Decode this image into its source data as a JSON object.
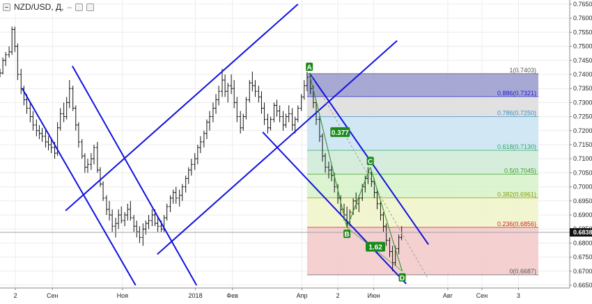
{
  "toolbar": {
    "symbol": "NZD/USD, Д,",
    "dash": "–"
  },
  "current_price": "0.6838",
  "chart_data": {
    "type": "candlestick",
    "symbol": "NZD/USD",
    "timeframe": "Д",
    "ylim": [
      0.665,
      0.765
    ],
    "ytick_values": [
      0.665,
      0.67,
      0.675,
      0.68,
      0.685,
      0.69,
      0.695,
      0.7,
      0.705,
      0.71,
      0.715,
      0.72,
      0.725,
      0.73,
      0.735,
      0.74,
      0.745,
      0.75,
      0.755,
      0.76,
      0.765
    ],
    "ytick_labels": [
      "0.6650",
      "0.6700",
      "0.6750",
      "0.6800",
      "0.6850",
      "0.6900",
      "0.6950",
      "0.7000",
      "0.7050",
      "0.7100",
      "0.7150",
      "0.7200",
      "0.7250",
      "0.7300",
      "0.7350",
      "0.7400",
      "0.7450",
      "0.7500",
      "0.7550",
      "0.7600",
      "0.7650"
    ],
    "xlim": [
      0,
      100
    ],
    "xticks": [
      {
        "x": 2.7,
        "label": "2"
      },
      {
        "x": 9.2,
        "label": "Сен"
      },
      {
        "x": 21.5,
        "label": "Ноя"
      },
      {
        "x": 34.3,
        "label": "2018"
      },
      {
        "x": 40.8,
        "label": "Фев"
      },
      {
        "x": 53.0,
        "label": "Апр"
      },
      {
        "x": 59.3,
        "label": "2"
      },
      {
        "x": 65.6,
        "label": "Июн"
      },
      {
        "x": 78.6,
        "label": "Авг"
      },
      {
        "x": 84.6,
        "label": "Сен"
      },
      {
        "x": 91.0,
        "label": "3"
      }
    ],
    "ohlc": [
      [
        0.0,
        0.74,
        0.742,
        0.739,
        0.7405
      ],
      [
        0.5,
        0.7405,
        0.746,
        0.74,
        0.745
      ],
      [
        1.0,
        0.745,
        0.748,
        0.743,
        0.747
      ],
      [
        1.6,
        0.747,
        0.75,
        0.746,
        0.748
      ],
      [
        2.1,
        0.748,
        0.757,
        0.747,
        0.756
      ],
      [
        2.6,
        0.756,
        0.757,
        0.748,
        0.75
      ],
      [
        3.1,
        0.75,
        0.751,
        0.738,
        0.74
      ],
      [
        3.7,
        0.74,
        0.742,
        0.733,
        0.735
      ],
      [
        4.2,
        0.735,
        0.736,
        0.729,
        0.731
      ],
      [
        4.7,
        0.731,
        0.733,
        0.726,
        0.728
      ],
      [
        5.3,
        0.728,
        0.73,
        0.723,
        0.725
      ],
      [
        5.8,
        0.725,
        0.727,
        0.72,
        0.722
      ],
      [
        6.4,
        0.722,
        0.724,
        0.718,
        0.72
      ],
      [
        6.9,
        0.72,
        0.722,
        0.717,
        0.719
      ],
      [
        7.4,
        0.719,
        0.721,
        0.716,
        0.718
      ],
      [
        8.0,
        0.718,
        0.72,
        0.714,
        0.716
      ],
      [
        8.5,
        0.716,
        0.718,
        0.713,
        0.715
      ],
      [
        9.0,
        0.715,
        0.717,
        0.712,
        0.714
      ],
      [
        9.6,
        0.714,
        0.716,
        0.71,
        0.712
      ],
      [
        10.1,
        0.712,
        0.723,
        0.711,
        0.721
      ],
      [
        10.6,
        0.721,
        0.728,
        0.72,
        0.726
      ],
      [
        11.2,
        0.726,
        0.73,
        0.723,
        0.725
      ],
      [
        11.7,
        0.725,
        0.732,
        0.724,
        0.73
      ],
      [
        12.2,
        0.73,
        0.738,
        0.728,
        0.735
      ],
      [
        12.8,
        0.735,
        0.736,
        0.727,
        0.728
      ],
      [
        13.3,
        0.728,
        0.729,
        0.72,
        0.722
      ],
      [
        13.8,
        0.722,
        0.723,
        0.714,
        0.716
      ],
      [
        14.4,
        0.716,
        0.717,
        0.71,
        0.711
      ],
      [
        14.9,
        0.711,
        0.712,
        0.705,
        0.707
      ],
      [
        15.4,
        0.707,
        0.71,
        0.705,
        0.708
      ],
      [
        16.0,
        0.708,
        0.712,
        0.706,
        0.71
      ],
      [
        16.5,
        0.71,
        0.715,
        0.708,
        0.714
      ],
      [
        17.1,
        0.714,
        0.716,
        0.705,
        0.706
      ],
      [
        17.6,
        0.706,
        0.707,
        0.7,
        0.701
      ],
      [
        18.1,
        0.701,
        0.702,
        0.695,
        0.696
      ],
      [
        18.7,
        0.696,
        0.697,
        0.69,
        0.692
      ],
      [
        19.2,
        0.692,
        0.695,
        0.688,
        0.69
      ],
      [
        19.7,
        0.69,
        0.692,
        0.684,
        0.686
      ],
      [
        20.3,
        0.686,
        0.689,
        0.682,
        0.687
      ],
      [
        20.8,
        0.687,
        0.692,
        0.685,
        0.69
      ],
      [
        21.3,
        0.69,
        0.693,
        0.687,
        0.688
      ],
      [
        21.9,
        0.688,
        0.691,
        0.686,
        0.69
      ],
      [
        22.4,
        0.69,
        0.694,
        0.688,
        0.692
      ],
      [
        22.9,
        0.692,
        0.695,
        0.688,
        0.689
      ],
      [
        23.5,
        0.689,
        0.69,
        0.684,
        0.686
      ],
      [
        24.0,
        0.686,
        0.688,
        0.682,
        0.684
      ],
      [
        24.5,
        0.684,
        0.686,
        0.68,
        0.682
      ],
      [
        25.1,
        0.682,
        0.687,
        0.679,
        0.685
      ],
      [
        25.6,
        0.685,
        0.688,
        0.683,
        0.687
      ],
      [
        26.1,
        0.687,
        0.69,
        0.685,
        0.688
      ],
      [
        26.7,
        0.688,
        0.692,
        0.686,
        0.69
      ],
      [
        27.2,
        0.69,
        0.692,
        0.686,
        0.687
      ],
      [
        27.7,
        0.687,
        0.689,
        0.684,
        0.686
      ],
      [
        28.3,
        0.686,
        0.688,
        0.684,
        0.685
      ],
      [
        28.8,
        0.685,
        0.69,
        0.684,
        0.689
      ],
      [
        29.3,
        0.689,
        0.694,
        0.688,
        0.693
      ],
      [
        29.9,
        0.693,
        0.697,
        0.691,
        0.696
      ],
      [
        30.4,
        0.696,
        0.699,
        0.694,
        0.698
      ],
      [
        30.9,
        0.698,
        0.7,
        0.694,
        0.696
      ],
      [
        31.5,
        0.696,
        0.699,
        0.693,
        0.697
      ],
      [
        32.0,
        0.697,
        0.701,
        0.695,
        0.7
      ],
      [
        32.6,
        0.7,
        0.704,
        0.698,
        0.703
      ],
      [
        33.1,
        0.703,
        0.707,
        0.701,
        0.706
      ],
      [
        33.6,
        0.706,
        0.71,
        0.704,
        0.708
      ],
      [
        34.2,
        0.708,
        0.712,
        0.706,
        0.71
      ],
      [
        34.7,
        0.71,
        0.715,
        0.708,
        0.714
      ],
      [
        35.2,
        0.714,
        0.718,
        0.712,
        0.716
      ],
      [
        35.8,
        0.716,
        0.72,
        0.714,
        0.719
      ],
      [
        36.3,
        0.719,
        0.724,
        0.717,
        0.723
      ],
      [
        36.8,
        0.723,
        0.727,
        0.72,
        0.725
      ],
      [
        37.4,
        0.725,
        0.73,
        0.723,
        0.728
      ],
      [
        37.9,
        0.728,
        0.733,
        0.726,
        0.731
      ],
      [
        38.4,
        0.731,
        0.736,
        0.729,
        0.734
      ],
      [
        39.0,
        0.734,
        0.742,
        0.732,
        0.738
      ],
      [
        39.5,
        0.738,
        0.74,
        0.732,
        0.734
      ],
      [
        40.0,
        0.734,
        0.737,
        0.73,
        0.736
      ],
      [
        40.6,
        0.736,
        0.74,
        0.733,
        0.735
      ],
      [
        41.1,
        0.735,
        0.738,
        0.728,
        0.73
      ],
      [
        41.6,
        0.73,
        0.732,
        0.723,
        0.725
      ],
      [
        42.2,
        0.725,
        0.727,
        0.719,
        0.721
      ],
      [
        42.7,
        0.721,
        0.726,
        0.72,
        0.725
      ],
      [
        43.2,
        0.725,
        0.732,
        0.724,
        0.731
      ],
      [
        43.8,
        0.731,
        0.738,
        0.73,
        0.737
      ],
      [
        44.3,
        0.737,
        0.741,
        0.734,
        0.736
      ],
      [
        44.8,
        0.736,
        0.738,
        0.732,
        0.734
      ],
      [
        45.4,
        0.734,
        0.736,
        0.73,
        0.732
      ],
      [
        45.9,
        0.732,
        0.734,
        0.726,
        0.728
      ],
      [
        46.4,
        0.728,
        0.73,
        0.722,
        0.724
      ],
      [
        47.0,
        0.724,
        0.726,
        0.719,
        0.721
      ],
      [
        47.5,
        0.721,
        0.725,
        0.72,
        0.724
      ],
      [
        48.1,
        0.724,
        0.73,
        0.723,
        0.729
      ],
      [
        48.6,
        0.729,
        0.731,
        0.725,
        0.727
      ],
      [
        49.1,
        0.727,
        0.729,
        0.723,
        0.725
      ],
      [
        49.7,
        0.725,
        0.727,
        0.72,
        0.722
      ],
      [
        50.2,
        0.722,
        0.726,
        0.721,
        0.725
      ],
      [
        50.7,
        0.725,
        0.729,
        0.723,
        0.726
      ],
      [
        51.3,
        0.726,
        0.728,
        0.72,
        0.722
      ],
      [
        51.8,
        0.722,
        0.725,
        0.719,
        0.724
      ],
      [
        52.3,
        0.724,
        0.729,
        0.723,
        0.728
      ],
      [
        52.9,
        0.728,
        0.733,
        0.727,
        0.732
      ],
      [
        53.4,
        0.732,
        0.738,
        0.731,
        0.736
      ],
      [
        53.9,
        0.736,
        0.741,
        0.734,
        0.739
      ],
      [
        54.5,
        0.739,
        0.74,
        0.733,
        0.735
      ],
      [
        55.0,
        0.735,
        0.736,
        0.728,
        0.73
      ],
      [
        55.5,
        0.73,
        0.731,
        0.722,
        0.724
      ],
      [
        56.1,
        0.724,
        0.725,
        0.716,
        0.718
      ],
      [
        56.6,
        0.718,
        0.719,
        0.709,
        0.711
      ],
      [
        57.1,
        0.711,
        0.712,
        0.705,
        0.707
      ],
      [
        57.7,
        0.707,
        0.709,
        0.703,
        0.706
      ],
      [
        58.2,
        0.706,
        0.708,
        0.702,
        0.704
      ],
      [
        58.7,
        0.704,
        0.705,
        0.698,
        0.7
      ],
      [
        59.3,
        0.7,
        0.701,
        0.694,
        0.696
      ],
      [
        59.8,
        0.696,
        0.697,
        0.69,
        0.692
      ],
      [
        60.4,
        0.692,
        0.694,
        0.688,
        0.69
      ],
      [
        60.9,
        0.69,
        0.693,
        0.686,
        0.687
      ],
      [
        61.4,
        0.687,
        0.692,
        0.686,
        0.691
      ],
      [
        62.0,
        0.691,
        0.696,
        0.69,
        0.695
      ],
      [
        62.5,
        0.695,
        0.698,
        0.692,
        0.694
      ],
      [
        63.0,
        0.694,
        0.697,
        0.691,
        0.696
      ],
      [
        63.6,
        0.696,
        0.701,
        0.695,
        0.7
      ],
      [
        64.1,
        0.7,
        0.704,
        0.698,
        0.703
      ],
      [
        64.6,
        0.703,
        0.707,
        0.701,
        0.705
      ],
      [
        65.2,
        0.705,
        0.706,
        0.7,
        0.702
      ],
      [
        65.7,
        0.702,
        0.703,
        0.696,
        0.698
      ],
      [
        66.2,
        0.698,
        0.699,
        0.692,
        0.694
      ],
      [
        66.8,
        0.694,
        0.695,
        0.688,
        0.69
      ],
      [
        67.3,
        0.69,
        0.691,
        0.684,
        0.686
      ],
      [
        67.8,
        0.686,
        0.687,
        0.679,
        0.681
      ],
      [
        68.4,
        0.681,
        0.682,
        0.675,
        0.677
      ],
      [
        68.9,
        0.677,
        0.679,
        0.67,
        0.673
      ],
      [
        69.4,
        0.673,
        0.679,
        0.672,
        0.678
      ],
      [
        70.0,
        0.678,
        0.683,
        0.676,
        0.682
      ],
      [
        70.5,
        0.682,
        0.686,
        0.681,
        0.6838
      ]
    ],
    "trend_lines": [
      {
        "name": "channel-1-lower",
        "x1": 3.9,
        "y1": 0.735,
        "x2": 23.8,
        "y2": 0.665
      },
      {
        "name": "channel-1-upper",
        "x1": 12.7,
        "y1": 0.743,
        "x2": 34.5,
        "y2": 0.665
      },
      {
        "name": "channel-2-lower",
        "x1": 11.5,
        "y1": 0.6915,
        "x2": 52.3,
        "y2": 0.765
      },
      {
        "name": "channel-2-upper",
        "x1": 27.6,
        "y1": 0.676,
        "x2": 69.7,
        "y2": 0.752
      },
      {
        "name": "channel-3-lower",
        "x1": 46.1,
        "y1": 0.7195,
        "x2": 71.3,
        "y2": 0.6655
      },
      {
        "name": "channel-3-upper",
        "x1": 54.3,
        "y1": 0.7405,
        "x2": 75.2,
        "y2": 0.6795
      }
    ],
    "fibonacci": {
      "x_start": 53.9,
      "x_end": 94.5,
      "levels": [
        {
          "ratio": "1",
          "price": 0.7403,
          "label": "1(0.7403)",
          "fill": "#9999cc",
          "text": "#555555"
        },
        {
          "ratio": "0.886",
          "price": 0.7321,
          "label": "0.886(0.7321)",
          "fill": "#dcdcdc",
          "text": "#2020cc"
        },
        {
          "ratio": "0.786",
          "price": 0.725,
          "label": "0.786(0.7250)",
          "fill": "#c9e3f2",
          "text": "#3a8fc5"
        },
        {
          "ratio": "0.618",
          "price": 0.713,
          "label": "0.618(0.7130)",
          "fill": "#cfead8",
          "text": "#2aa860"
        },
        {
          "ratio": "0.5",
          "price": 0.7045,
          "label": "0.5(0.7045)",
          "fill": "#d6f2c7",
          "text": "#3aa020"
        },
        {
          "ratio": "0.382",
          "price": 0.6961,
          "label": "0.382(0.6961)",
          "fill": "#eef3c8",
          "text": "#8a9a10"
        },
        {
          "ratio": "0.236",
          "price": 0.6856,
          "label": "0.236(0.6856)",
          "fill": "#f3c8c8",
          "text": "#d02020"
        },
        {
          "ratio": "0",
          "price": 0.6687,
          "label": "0(0.6687)",
          "fill": "none",
          "text": "#555555"
        }
      ]
    },
    "harmonic": {
      "points": [
        {
          "label": "A",
          "x": 54.3,
          "y": 0.7405
        },
        {
          "label": "B",
          "x": 60.9,
          "y": 0.6855
        },
        {
          "label": "C",
          "x": 65.0,
          "y": 0.707
        },
        {
          "label": "D",
          "x": 70.6,
          "y": 0.67
        }
      ],
      "ratios": [
        {
          "label": "0.377",
          "x": 59.7,
          "y": 0.7195
        },
        {
          "label": "1.62",
          "x": 65.9,
          "y": 0.6787
        }
      ],
      "dashed_target": {
        "x1": 54.3,
        "y1": 0.7405,
        "x2": 75.0,
        "y2": 0.6678
      }
    },
    "hlines": [
      {
        "name": "current-price-line",
        "price": 0.6838,
        "color": "#a0a0a0"
      }
    ]
  }
}
